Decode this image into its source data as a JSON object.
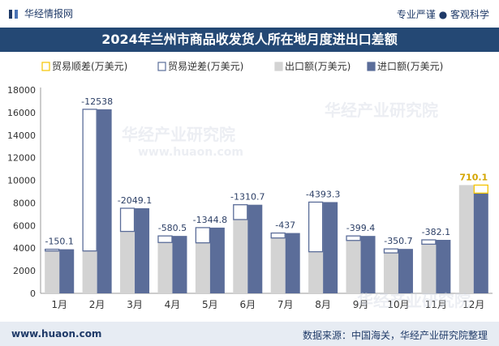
{
  "header": {
    "brand": "华经情报网",
    "slogan": "专业严谨 ● 客观科学"
  },
  "title": "2024年兰州市商品收发货人所在地月度进出口差额",
  "footer": {
    "website": "www.huaon.com",
    "source": "数据来源：中国海关，华经产业研究院整理"
  },
  "watermarks": [
    "华经产业研究院",
    "www.huaon.com"
  ],
  "colors": {
    "surplus": "#f5c400",
    "deficit": "#5b6d99",
    "export": "#d3d3d3",
    "import": "#5b6d99",
    "title_bg": "#244874"
  },
  "chart_data": {
    "type": "bar",
    "categories": [
      "1月",
      "2月",
      "3月",
      "4月",
      "5月",
      "6月",
      "7月",
      "8月",
      "9月",
      "10月",
      "11月",
      "12月"
    ],
    "series": [
      {
        "name": "出口额(万美元)",
        "values": [
          3750,
          3750,
          5480,
          4500,
          4470,
          6530,
          4900,
          3680,
          4680,
          3580,
          4350,
          9580
        ]
      },
      {
        "name": "进口额(万美元)",
        "values": [
          3900.1,
          16288,
          7529.1,
          5080.5,
          5814.8,
          7840.7,
          5337,
          8073.3,
          5079.4,
          3930.7,
          4732.1,
          8869.9
        ]
      }
    ],
    "balance": [
      -150.1,
      -12538,
      -2049.1,
      -580.5,
      -1344.8,
      -1310.7,
      -437,
      -4393.3,
      -399.4,
      -350.7,
      -382.1,
      710.1
    ],
    "balance_labels": [
      "-150.1",
      "-12538",
      "-2049.1",
      "-580.5",
      "-1344.8",
      "-1310.7",
      "-437",
      "-4393.3",
      "-399.4",
      "-350.7",
      "-382.1",
      "710.1"
    ],
    "legend": [
      "贸易顺差(万美元)",
      "贸易逆差(万美元)",
      "出口额(万美元)",
      "进口额(万美元)"
    ],
    "y_ticks": [
      "0",
      "2000",
      "4000",
      "6000",
      "8000",
      "10000",
      "12000",
      "14000",
      "16000",
      "18000"
    ],
    "ylim": [
      0,
      18000
    ],
    "title": "2024年兰州市商品收发货人所在地月度进出口差额"
  }
}
